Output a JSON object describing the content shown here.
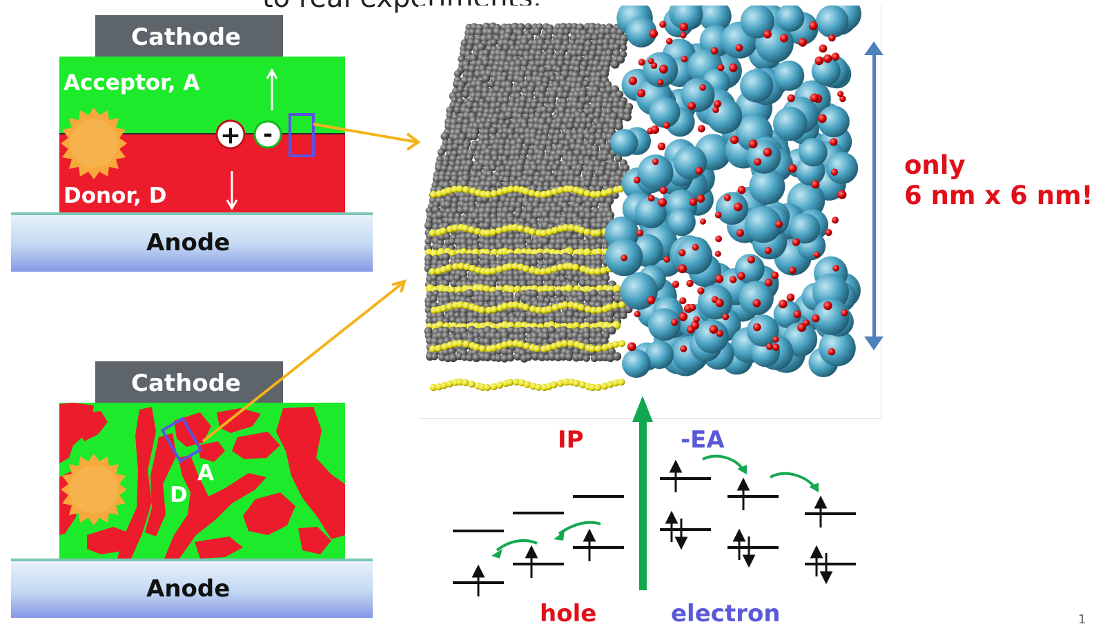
{
  "slide": {
    "cut_title": "to real experiments.",
    "page_number": "1"
  },
  "bilayer_device": {
    "cathode": "Cathode",
    "acceptor": "Acceptor, A",
    "donor": "Donor, D",
    "anode": "Anode",
    "plus": "+",
    "minus": "-"
  },
  "bulk_device": {
    "cathode": "Cathode",
    "donor_letter": "D",
    "acceptor_letter": "A",
    "anode": "Anode"
  },
  "annotation": {
    "line1": "only",
    "line2": "6 nm x 6 nm!"
  },
  "energy_diagram": {
    "ip_label": "IP",
    "ea_label": "-EA",
    "hole_label": "hole",
    "electron_label": "electron"
  },
  "colors": {
    "acceptor_green": "#1eea2c",
    "donor_red": "#ec1c2c",
    "cathode_gray": "#5d656b",
    "anode_blue": "#c5dcf4",
    "sun_orange": "#f7a93c",
    "arrow_yellow": "#f2b31b",
    "scale_blue": "#4f81bd",
    "up_arrow_green": "#10a84e",
    "fullerene_blue": "#4aa3c3",
    "polymer_gray": "#5b5b5b",
    "sulfur_yellow": "#e6e01a"
  }
}
